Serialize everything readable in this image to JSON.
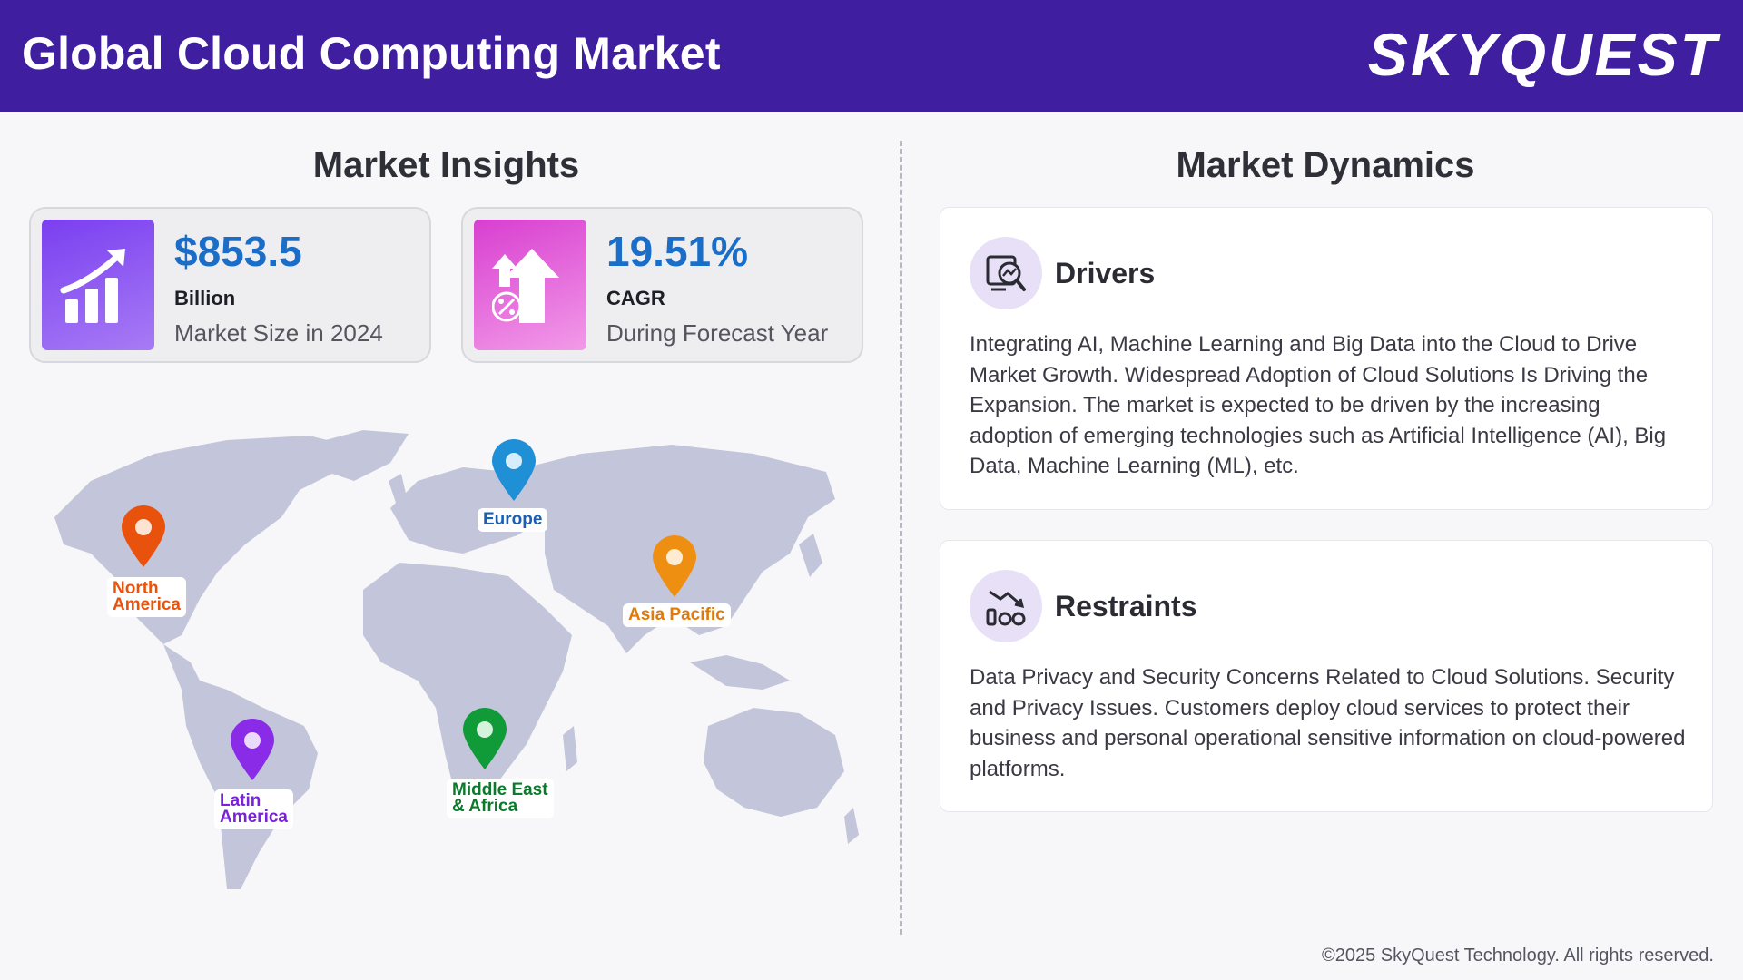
{
  "header": {
    "title": "Global Cloud Computing Market",
    "logo_text": "SKYQUEST"
  },
  "insights": {
    "title": "Market Insights",
    "cards": [
      {
        "value": "$853.5",
        "unit": "Billion",
        "desc": "Market Size in 2024",
        "icon": "bar-chart-growth-icon"
      },
      {
        "value": "19.51%",
        "unit": "CAGR",
        "desc": "During Forecast Year",
        "icon": "percent-growth-arrow-icon"
      }
    ]
  },
  "map": {
    "regions": [
      {
        "label_line1": "North",
        "label_line2": "America",
        "color": "#e8520c"
      },
      {
        "label_line1": "Europe",
        "label_line2": "",
        "color": "#1f8fd6"
      },
      {
        "label_line1": "Asia Pacific",
        "label_line2": "",
        "color": "#ef8f12"
      },
      {
        "label_line1": "Latin",
        "label_line2": "America",
        "color": "#8a2be8"
      },
      {
        "label_line1": "Middle East",
        "label_line2": "& Africa",
        "color": "#119a38"
      }
    ]
  },
  "dynamics": {
    "title": "Market Dynamics",
    "drivers": {
      "title": "Drivers",
      "text": "Integrating AI, Machine Learning and Big Data into the Cloud to Drive Market Growth. Widespread Adoption of Cloud Solutions Is Driving the Expansion. The market is expected to be driven by the increasing adoption of emerging technologies such as Artificial Intelligence (AI), Big Data, Machine Learning (ML), etc.",
      "icon": "analytics-magnifier-icon"
    },
    "restraints": {
      "title": "Restraints",
      "text": "Data Privacy and Security Concerns Related to Cloud Solutions. Security and Privacy Issues. Customers deploy cloud services to protect their business and personal operational sensitive information on cloud-powered platforms.",
      "icon": "declining-chart-icon"
    }
  },
  "footer": {
    "copyright": "©2025 SkyQuest Technology. All rights reserved."
  }
}
